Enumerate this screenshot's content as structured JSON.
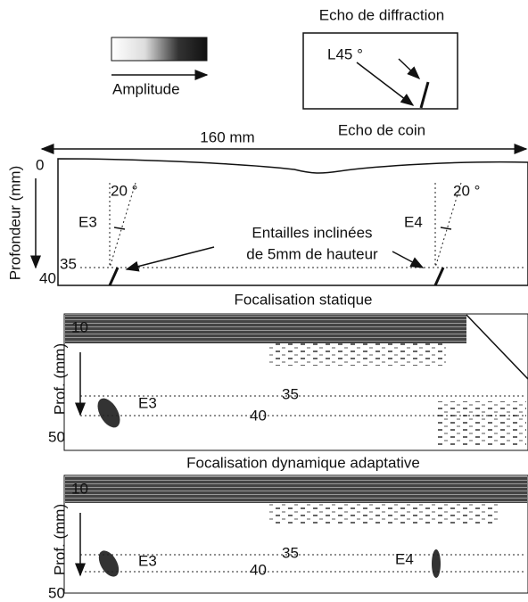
{
  "legend": {
    "label": "Amplitude"
  },
  "inset": {
    "top_label": "Echo de diffraction",
    "angle_label": "L45 °",
    "bottom_label": "Echo de coin"
  },
  "width_label": "160 mm",
  "schematic": {
    "y_axis_label": "Profondeur (mm)",
    "y_top": "0",
    "y_bottom": "40",
    "depth_mark": "35",
    "left_angle": "20 °",
    "right_angle": "20 °",
    "left_notch": "E3",
    "right_notch": "E4",
    "notch_text": [
      "Entailles inclinées",
      "de 5mm de hauteur"
    ]
  },
  "panels": [
    {
      "title": "Focalisation statique",
      "y_axis_label": "Prof. (mm)",
      "y_top": "10",
      "y_bottom": "50",
      "notch_labels": [
        "E3"
      ],
      "depth_upper": "35",
      "depth_lower": "40"
    },
    {
      "title": "Focalisation dynamique adaptative",
      "y_axis_label": "Prof. (mm)",
      "y_top": "10",
      "y_bottom": "50",
      "notch_labels": [
        "E3",
        "E4"
      ],
      "depth_upper": "35",
      "depth_lower": "40"
    }
  ]
}
